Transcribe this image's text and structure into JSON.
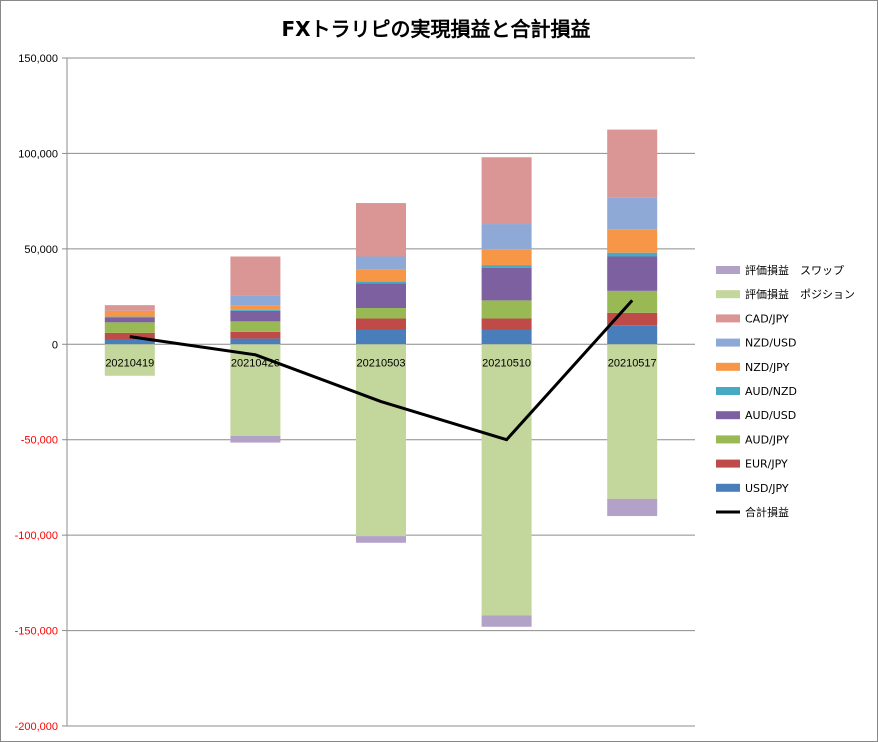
{
  "chart_data": {
    "type": "bar",
    "stacked": true,
    "title": "FXトラリピの実現損益と合計損益",
    "categories": [
      "20210419",
      "20210426",
      "20210503",
      "20210510",
      "20210517"
    ],
    "ylim": [
      -200000,
      150000
    ],
    "yticks": [
      {
        "value": 150000,
        "label": "150,000"
      },
      {
        "value": 100000,
        "label": "100,000"
      },
      {
        "value": 50000,
        "label": "50,000"
      },
      {
        "value": 0,
        "label": "0"
      },
      {
        "value": -50000,
        "label": "-50,000"
      },
      {
        "value": -100000,
        "label": "-100,000"
      },
      {
        "value": -150000,
        "label": "-150,000"
      },
      {
        "value": -200000,
        "label": "-200,000"
      }
    ],
    "grid": true,
    "legend_position": "right",
    "series": [
      {
        "name": "USD/JPY",
        "color": "#4a7ebb",
        "values": [
          2500,
          3000,
          7500,
          7500,
          10000
        ]
      },
      {
        "name": "EUR/JPY",
        "color": "#be4b48",
        "values": [
          3500,
          3500,
          6000,
          6000,
          6500
        ]
      },
      {
        "name": "AUD/JPY",
        "color": "#98b954",
        "values": [
          5500,
          5500,
          5500,
          9500,
          11500
        ]
      },
      {
        "name": "AUD/USD",
        "color": "#7d60a0",
        "values": [
          2500,
          5500,
          13000,
          17000,
          18000
        ]
      },
      {
        "name": "AUD/NZD",
        "color": "#46aac5",
        "values": [
          500,
          500,
          1000,
          1500,
          2000
        ]
      },
      {
        "name": "NZD/JPY",
        "color": "#f79646",
        "values": [
          3000,
          2500,
          6000,
          8000,
          12000
        ]
      },
      {
        "name": "NZD/USD",
        "color": "#8fa9d6",
        "values": [
          0,
          5000,
          7000,
          13500,
          17000
        ]
      },
      {
        "name": "CAD/JPY",
        "color": "#d99694",
        "values": [
          3000,
          20500,
          28000,
          35000,
          35500
        ]
      },
      {
        "name": "評価損益　ポジション",
        "color": "#c3d69b",
        "values": [
          -16500,
          -48000,
          -100500,
          -142000,
          -81000
        ]
      },
      {
        "name": "評価損益　スワップ",
        "color": "#b3a2c7",
        "values": [
          0,
          -3500,
          -3500,
          -6000,
          -9000
        ]
      }
    ],
    "line": {
      "name": "合計損益",
      "color": "#000000",
      "values": [
        4000,
        -5500,
        -30000,
        -50000,
        23000
      ]
    }
  }
}
